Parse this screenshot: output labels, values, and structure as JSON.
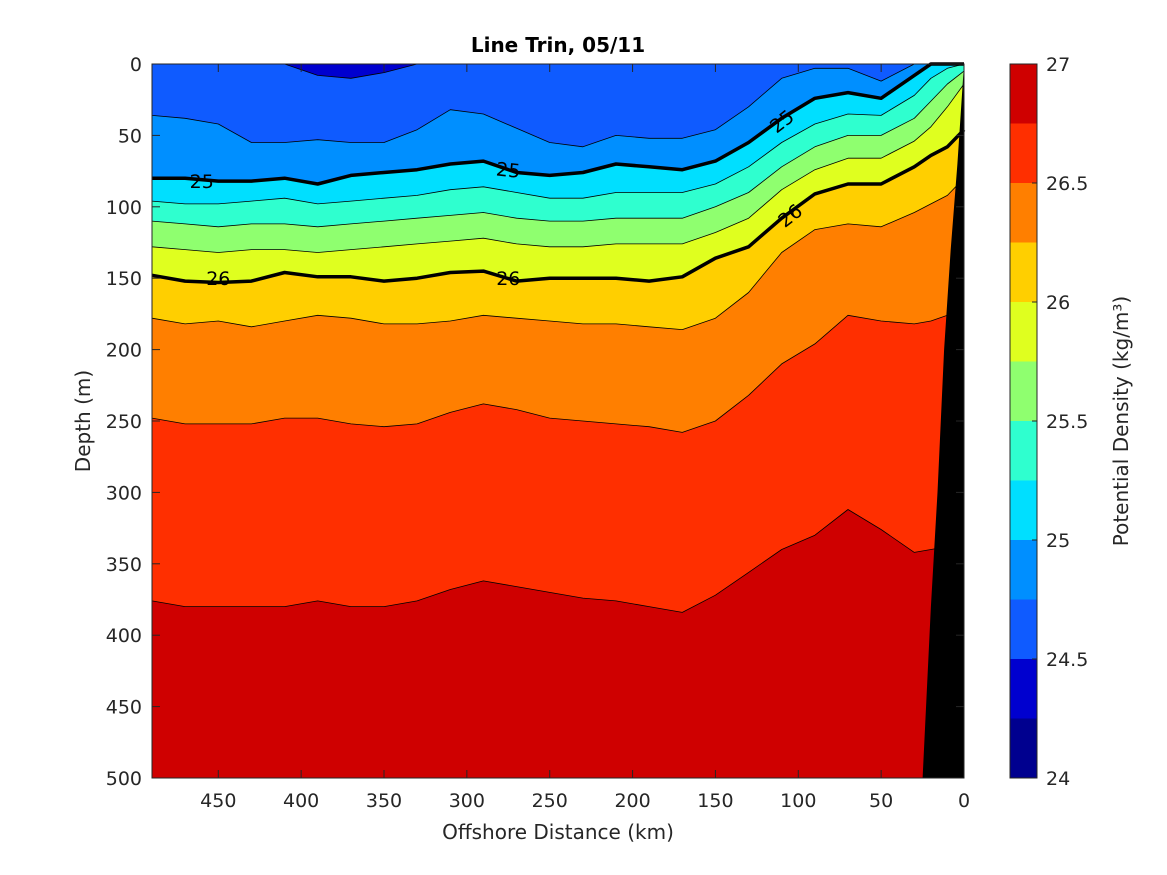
{
  "chart_data": {
    "type": "contour",
    "title": "Line Trin, 05/11",
    "xlabel": "Offshore Distance (km)",
    "ylabel": "Depth (m)",
    "colorbar_label": "Potential Density (kg/m³)",
    "xlim": [
      490,
      0
    ],
    "x_reversed": true,
    "ylim": [
      0,
      500
    ],
    "y_reversed": true,
    "x_ticks": [
      450,
      400,
      350,
      300,
      250,
      200,
      150,
      100,
      50,
      0
    ],
    "y_ticks": [
      0,
      50,
      100,
      150,
      200,
      250,
      300,
      350,
      400,
      450,
      500
    ],
    "colorbar_ticks": [
      "24",
      "24.5",
      "25",
      "25.5",
      "26",
      "26.5",
      "27"
    ],
    "levels": [
      24,
      24.25,
      24.5,
      24.75,
      25,
      25.25,
      25.5,
      25.75,
      26,
      26.25,
      26.5,
      26.75,
      27
    ],
    "level_colors": [
      "#00008f",
      "#0000cf",
      "#0f5bff",
      "#008fff",
      "#00dfff",
      "#2fffcf",
      "#8fff6f",
      "#dfff1f",
      "#ffcf00",
      "#ff7f00",
      "#ff2f00",
      "#cf0000"
    ],
    "contour_labels": [
      "25",
      "25",
      "25",
      "26",
      "26",
      "26"
    ],
    "highlight_levels": [
      25,
      26
    ],
    "land_color": "#000000",
    "x": [
      490,
      470,
      450,
      430,
      410,
      390,
      370,
      350,
      330,
      310,
      290,
      270,
      250,
      230,
      210,
      190,
      170,
      150,
      130,
      110,
      90,
      70,
      50,
      30,
      20,
      10,
      0
    ],
    "contours": [
      {
        "level": 24.5,
        "depth": [
          0,
          0,
          0,
          0,
          0,
          8,
          10,
          6,
          0,
          0,
          0,
          0,
          0,
          0,
          0,
          0,
          0,
          0,
          0,
          0,
          0,
          0,
          0,
          0,
          0,
          0,
          0
        ]
      },
      {
        "level": 24.75,
        "depth": [
          36,
          38,
          42,
          55,
          55,
          53,
          55,
          55,
          46,
          32,
          35,
          45,
          55,
          58,
          50,
          52,
          52,
          46,
          30,
          10,
          3,
          3,
          12,
          0,
          0,
          0,
          0
        ]
      },
      {
        "level": 25,
        "depth": [
          80,
          80,
          82,
          82,
          80,
          84,
          78,
          76,
          74,
          70,
          68,
          76,
          78,
          76,
          70,
          72,
          74,
          68,
          55,
          38,
          24,
          20,
          24,
          8,
          0,
          0,
          0
        ]
      },
      {
        "level": 25.25,
        "depth": [
          96,
          98,
          98,
          96,
          94,
          98,
          96,
          94,
          92,
          88,
          86,
          90,
          94,
          94,
          90,
          90,
          90,
          84,
          72,
          55,
          42,
          35,
          36,
          22,
          10,
          3,
          0
        ]
      },
      {
        "level": 25.5,
        "depth": [
          110,
          112,
          114,
          112,
          112,
          114,
          112,
          110,
          108,
          106,
          104,
          108,
          110,
          110,
          108,
          108,
          108,
          100,
          90,
          72,
          58,
          50,
          50,
          38,
          26,
          14,
          5
        ]
      },
      {
        "level": 25.75,
        "depth": [
          128,
          130,
          132,
          130,
          130,
          132,
          130,
          128,
          126,
          124,
          122,
          126,
          128,
          128,
          126,
          126,
          126,
          118,
          108,
          88,
          74,
          66,
          66,
          54,
          44,
          30,
          14
        ]
      },
      {
        "level": 26,
        "depth": [
          148,
          152,
          153,
          152,
          146,
          149,
          149,
          152,
          150,
          146,
          145,
          152,
          150,
          150,
          150,
          152,
          149,
          136,
          128,
          108,
          91,
          84,
          84,
          72,
          64,
          58,
          46
        ]
      },
      {
        "level": 26.25,
        "depth": [
          178,
          182,
          180,
          184,
          180,
          176,
          178,
          182,
          182,
          180,
          176,
          178,
          180,
          182,
          182,
          184,
          186,
          178,
          160,
          132,
          116,
          112,
          114,
          104,
          98,
          92,
          80
        ]
      },
      {
        "level": 26.5,
        "depth": [
          248,
          252,
          252,
          252,
          248,
          248,
          252,
          254,
          252,
          244,
          238,
          242,
          248,
          250,
          252,
          254,
          258,
          250,
          232,
          210,
          196,
          176,
          180,
          182,
          180,
          176,
          170
        ]
      },
      {
        "level": 26.75,
        "depth": [
          376,
          380,
          380,
          380,
          380,
          376,
          380,
          380,
          376,
          368,
          362,
          366,
          370,
          374,
          376,
          380,
          384,
          372,
          356,
          340,
          330,
          312,
          326,
          342,
          340,
          338,
          336
        ]
      }
    ]
  }
}
